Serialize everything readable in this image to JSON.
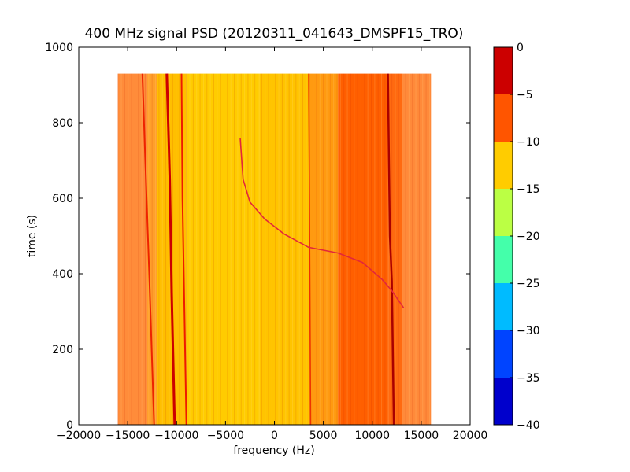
{
  "chart_data": {
    "type": "heatmap",
    "title": "400 MHz signal PSD (20120311_041643_DMSPF15_TRO)",
    "xlabel": "frequency (Hz)",
    "ylabel": "time (s)",
    "xlim": [
      -20000,
      20000
    ],
    "ylim": [
      0,
      1000
    ],
    "xticks": [
      -20000,
      -15000,
      -10000,
      -5000,
      0,
      5000,
      10000,
      15000,
      20000
    ],
    "xtick_labels": [
      "−20000",
      "−15000",
      "−10000",
      "−5000",
      "0",
      "5000",
      "10000",
      "15000",
      "20000"
    ],
    "yticks": [
      0,
      200,
      400,
      600,
      800,
      1000
    ],
    "ytick_labels": [
      "0",
      "200",
      "400",
      "600",
      "800",
      "1000"
    ],
    "data_extent": {
      "x": [
        -16000,
        16000
      ],
      "y": [
        0,
        930
      ]
    },
    "colorbar": {
      "ticks": [
        0,
        -5,
        -10,
        -15,
        -20,
        -25,
        -30,
        -35,
        -40
      ],
      "tick_labels": [
        "0",
        "−5",
        "−10",
        "−15",
        "−20",
        "−25",
        "−30",
        "−35",
        "−40"
      ],
      "levels": [
        {
          "range": [
            -5,
            0
          ],
          "color": "#cc0000"
        },
        {
          "range": [
            -10,
            -5
          ],
          "color": "#ff5500"
        },
        {
          "range": [
            -15,
            -10
          ],
          "color": "#ffcc00"
        },
        {
          "range": [
            -20,
            -15
          ],
          "color": "#bbff44"
        },
        {
          "range": [
            -25,
            -20
          ],
          "color": "#44ffaa"
        },
        {
          "range": [
            -30,
            -25
          ],
          "color": "#00bbff"
        },
        {
          "range": [
            -35,
            -30
          ],
          "color": "#0044ff"
        },
        {
          "range": [
            -40,
            -35
          ],
          "color": "#0000cc"
        }
      ]
    },
    "bands": [
      {
        "x": [
          -16000,
          -13000
        ],
        "level": "-10..-5",
        "color": "#ff8c3a"
      },
      {
        "x": [
          -13000,
          -12000
        ],
        "level": "-10..-5",
        "color": "#ff9f2a"
      },
      {
        "x": [
          -12000,
          -9000
        ],
        "level": "-15..-10",
        "color": "#ffbf00"
      },
      {
        "x": [
          -9000,
          -1500
        ],
        "level": "-15..-10",
        "color": "#ffcc00"
      },
      {
        "x": [
          -1500,
          3500
        ],
        "level": "-15..-10",
        "color": "#ffc400"
      },
      {
        "x": [
          3500,
          6500
        ],
        "level": "-10..-5",
        "color": "#ff9a10"
      },
      {
        "x": [
          6500,
          11500
        ],
        "level": "-10..-5",
        "color": "#ff5f00"
      },
      {
        "x": [
          11500,
          13000
        ],
        "level": "-10..-5",
        "color": "#ff6a10"
      },
      {
        "x": [
          13000,
          16000
        ],
        "level": "-10..-5",
        "color": "#ff8a3a"
      }
    ],
    "tracks": [
      {
        "points": [
          [
            -13500,
            930
          ],
          [
            -13200,
            700
          ],
          [
            -12800,
            400
          ],
          [
            -12300,
            0
          ]
        ],
        "color": "#ee2200",
        "width": 2
      },
      {
        "points": [
          [
            -11000,
            930
          ],
          [
            -10800,
            750
          ],
          [
            -10700,
            650
          ],
          [
            -10500,
            350
          ],
          [
            -10200,
            0
          ]
        ],
        "color": "#cc0000",
        "width": 3
      },
      {
        "points": [
          [
            -9500,
            930
          ],
          [
            -9400,
            600
          ],
          [
            -9200,
            300
          ],
          [
            -9000,
            0
          ]
        ],
        "color": "#ee1a00",
        "width": 2
      },
      {
        "points": [
          [
            3500,
            930
          ],
          [
            3600,
            500
          ],
          [
            3700,
            0
          ]
        ],
        "color": "#ee3300",
        "width": 1.5
      },
      {
        "points": [
          [
            11600,
            930
          ],
          [
            11700,
            700
          ],
          [
            11800,
            500
          ],
          [
            12000,
            380
          ],
          [
            12200,
            0
          ]
        ],
        "color": "#aa0000",
        "width": 2.5
      },
      {
        "points": [
          [
            -3500,
            760
          ],
          [
            -3200,
            650
          ],
          [
            -2500,
            590
          ],
          [
            -1000,
            545
          ],
          [
            1000,
            505
          ],
          [
            3500,
            470
          ],
          [
            6500,
            455
          ],
          [
            9000,
            430
          ],
          [
            11000,
            385
          ],
          [
            12000,
            355
          ],
          [
            13200,
            310
          ]
        ],
        "color": "#e3273a",
        "width": 1.6
      }
    ]
  }
}
